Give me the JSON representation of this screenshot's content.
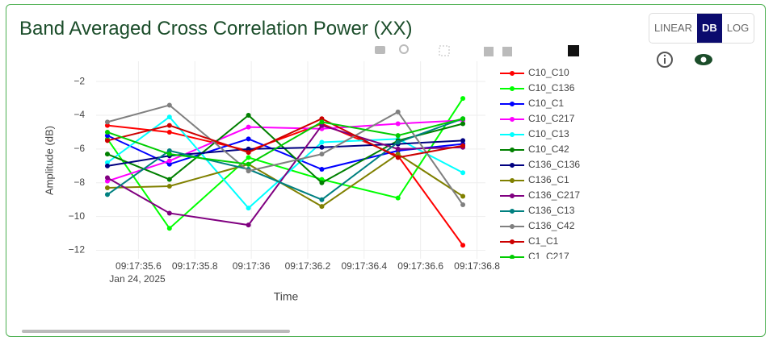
{
  "chart_data": {
    "type": "line",
    "title": "Band Averaged Cross Correlation Power (XX)",
    "xlabel": "Time",
    "ylabel": "Amplitude (dB)",
    "x_date_label": "Jan 24, 2025",
    "x": [
      35.49,
      35.71,
      35.99,
      36.25,
      36.52,
      36.75
    ],
    "xlim": [
      35.45,
      36.83
    ],
    "xticks": [
      {
        "value": 35.6,
        "label": "09:17:35.6"
      },
      {
        "value": 35.8,
        "label": "09:17:35.8"
      },
      {
        "value": 36.0,
        "label": "09:17:36"
      },
      {
        "value": 36.2,
        "label": "09:17:36.2"
      },
      {
        "value": 36.4,
        "label": "09:17:36.4"
      },
      {
        "value": 36.6,
        "label": "09:17:36.6"
      },
      {
        "value": 36.8,
        "label": "09:17:36.8"
      }
    ],
    "ylim": [
      -12.5,
      -0.8
    ],
    "yticks": [
      {
        "value": -2,
        "label": "−2"
      },
      {
        "value": -4,
        "label": "−4"
      },
      {
        "value": -6,
        "label": "−6"
      },
      {
        "value": -8,
        "label": "−8"
      },
      {
        "value": -10,
        "label": "−10"
      },
      {
        "value": -12,
        "label": "−12"
      }
    ],
    "grid": true,
    "series": [
      {
        "name": "C10_C10",
        "color": "#ff0000",
        "values": [
          -4.6,
          -5.0,
          -6.1,
          -4.5,
          -6.4,
          -11.7
        ]
      },
      {
        "name": "C10_C136",
        "color": "#00ff00",
        "values": [
          -5.4,
          -10.7,
          -6.5,
          -7.8,
          -8.9,
          -3.0
        ]
      },
      {
        "name": "C10_C1",
        "color": "#0000ff",
        "values": [
          -5.2,
          -6.9,
          -5.4,
          -7.2,
          -6.1,
          -5.7
        ]
      },
      {
        "name": "C10_C217",
        "color": "#ff00ff",
        "values": [
          -7.9,
          -6.7,
          -4.7,
          -4.8,
          -4.5,
          -4.3
        ]
      },
      {
        "name": "C10_C13",
        "color": "#00ffff",
        "values": [
          -6.8,
          -4.1,
          -9.5,
          -5.6,
          -5.4,
          -7.4
        ]
      },
      {
        "name": "C10_C42",
        "color": "#008000",
        "values": [
          -6.3,
          -7.8,
          -4.0,
          -8.0,
          -5.5,
          -4.5
        ]
      },
      {
        "name": "C136_C136",
        "color": "#000080",
        "values": [
          -7.0,
          -6.4,
          -6.0,
          -5.9,
          -5.7,
          -5.5
        ]
      },
      {
        "name": "C136_C1",
        "color": "#808000",
        "values": [
          -8.3,
          -8.2,
          -6.9,
          -9.4,
          -6.3,
          -8.8
        ]
      },
      {
        "name": "C136_C217",
        "color": "#800080",
        "values": [
          -7.7,
          -9.8,
          -10.5,
          -4.6,
          -6.0,
          -5.9
        ]
      },
      {
        "name": "C136_C13",
        "color": "#008080",
        "values": [
          -8.7,
          -6.1,
          -7.2,
          -9.0,
          -5.6,
          -4.2
        ]
      },
      {
        "name": "C136_C42",
        "color": "#808080",
        "values": [
          -4.4,
          -3.4,
          -7.3,
          -6.3,
          -3.8,
          -9.3
        ]
      },
      {
        "name": "C1_C1",
        "color": "#cc0000",
        "values": [
          -5.5,
          -4.6,
          -6.2,
          -4.2,
          -6.5,
          -5.8
        ]
      },
      {
        "name": "C1_C217",
        "color": "#00cc00",
        "values": [
          -5.0,
          -6.3,
          -6.9,
          -4.4,
          -5.2,
          -4.2
        ]
      }
    ]
  },
  "ui": {
    "scale_buttons": [
      "LINEAR",
      "DB",
      "LOG"
    ],
    "active_scale_index": 1
  }
}
